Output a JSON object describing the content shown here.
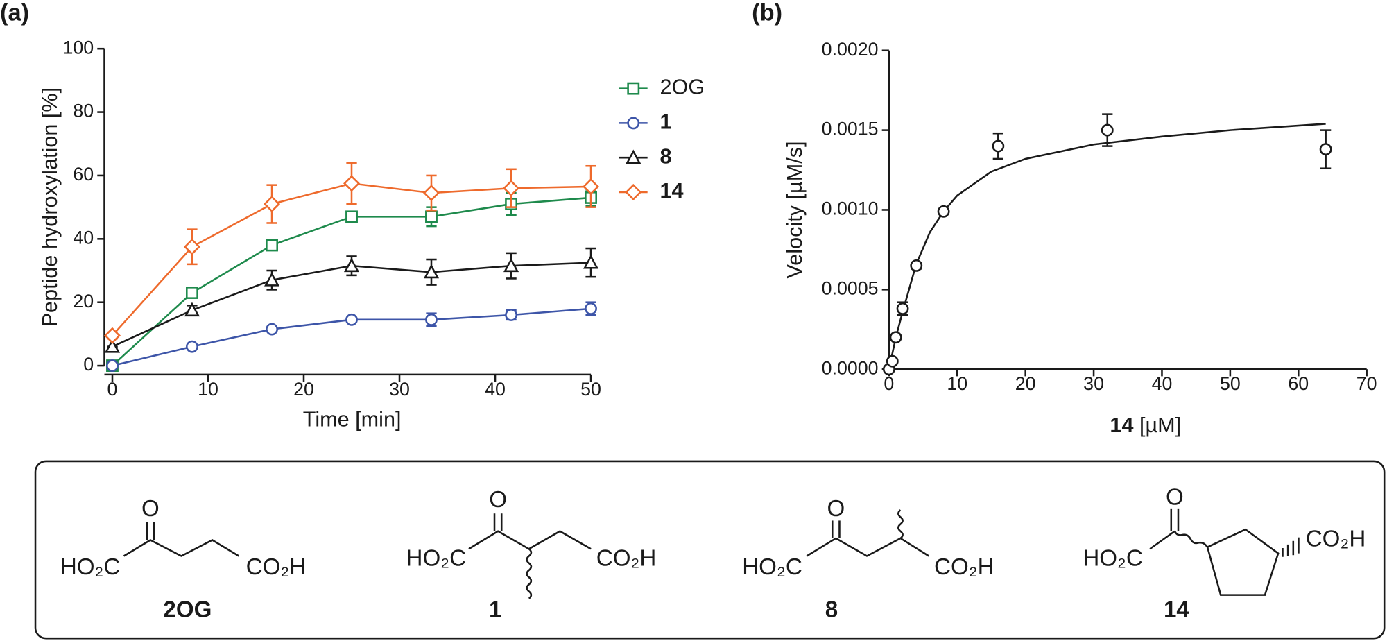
{
  "chart_data": [
    {
      "type": "line",
      "panel": "(a)",
      "x_label": "Time [min]",
      "y_label": "Peptide hydroxylation [%]",
      "x": [
        0,
        8.33,
        16.67,
        25,
        33.33,
        41.67,
        50
      ],
      "xlim": [
        0,
        50
      ],
      "xticks": [
        0,
        10,
        20,
        30,
        40,
        50
      ],
      "ylim": [
        0,
        100
      ],
      "yticks": [
        0,
        20,
        40,
        60,
        80,
        100
      ],
      "grid": false,
      "legend": "right",
      "series": [
        {
          "name": "2OG",
          "color": "#1e8a4c",
          "marker": "square",
          "label_weight": "normal",
          "values": [
            0,
            23,
            38,
            47,
            47,
            51,
            53
          ],
          "errors": [
            0,
            1.5,
            1,
            1,
            3,
            3.5,
            2.5
          ]
        },
        {
          "name": "1",
          "color": "#3d55a8",
          "marker": "circle",
          "label_weight": "bold",
          "values": [
            0,
            6,
            11.5,
            14.5,
            14.5,
            16,
            18
          ],
          "errors": [
            0,
            0.5,
            0.5,
            0.5,
            2,
            1.5,
            2
          ]
        },
        {
          "name": "8",
          "color": "#1a1a1a",
          "marker": "triangle",
          "label_weight": "bold",
          "values": [
            6,
            17.5,
            27,
            31.5,
            29.5,
            31.5,
            32.5
          ],
          "errors": [
            0,
            1.5,
            3,
            3,
            4,
            4,
            4.5
          ]
        },
        {
          "name": "14",
          "color": "#ee6a2c",
          "marker": "diamond",
          "label_weight": "bold",
          "values": [
            9.5,
            37.5,
            51,
            57.5,
            54.5,
            56,
            56.5
          ],
          "errors": [
            1,
            5.5,
            6,
            6.5,
            5.5,
            6,
            6.5
          ]
        }
      ]
    },
    {
      "type": "scatter",
      "panel": "(b)",
      "x_label": [
        "14",
        "[µM]"
      ],
      "y_label": "Velocity [µM/s]",
      "x": [
        0,
        0.5,
        1,
        2,
        4,
        8,
        16,
        32,
        64
      ],
      "values": [
        0,
        5e-05,
        0.0002,
        0.00038,
        0.00065,
        0.00099,
        0.0014,
        0.0015,
        0.00138
      ],
      "errors": [
        0,
        0,
        0,
        4e-05,
        2e-05,
        0,
        8e-05,
        0.0001,
        0.00012
      ],
      "color": "#1a1a1a",
      "fit": {
        "x": [
          0,
          1,
          2,
          4,
          6,
          8,
          10,
          15,
          20,
          30,
          40,
          50,
          64
        ],
        "values": [
          0,
          0.0002,
          0.00036,
          0.00066,
          0.00086,
          0.00099,
          0.00109,
          0.00124,
          0.00132,
          0.00141,
          0.00146,
          0.0015,
          0.00154
        ]
      },
      "xlim": [
        0,
        70
      ],
      "xticks": [
        0,
        10,
        20,
        30,
        40,
        50,
        60,
        70
      ],
      "ylim": [
        0,
        0.002
      ],
      "yticks": [
        {
          "value": 0,
          "label": "0.0000"
        },
        {
          "value": 0.0005,
          "label": "0.0005"
        },
        {
          "value": 0.001,
          "label": "0.0010"
        },
        {
          "value": 0.0015,
          "label": "0.0015"
        },
        {
          "value": 0.002,
          "label": "0.0020"
        }
      ],
      "grid": false
    }
  ],
  "structures": [
    {
      "label": "2OG",
      "atoms": [
        "O",
        "HO₂C",
        "CO₂H"
      ]
    },
    {
      "label": "1",
      "atoms": [
        "O",
        "HO₂C",
        "CO₂H"
      ]
    },
    {
      "label": "8",
      "atoms": [
        "O",
        "HO₂C",
        "CO₂H"
      ]
    },
    {
      "label": "14",
      "atoms": [
        "O",
        "HO₂C",
        "CO₂H"
      ]
    }
  ]
}
